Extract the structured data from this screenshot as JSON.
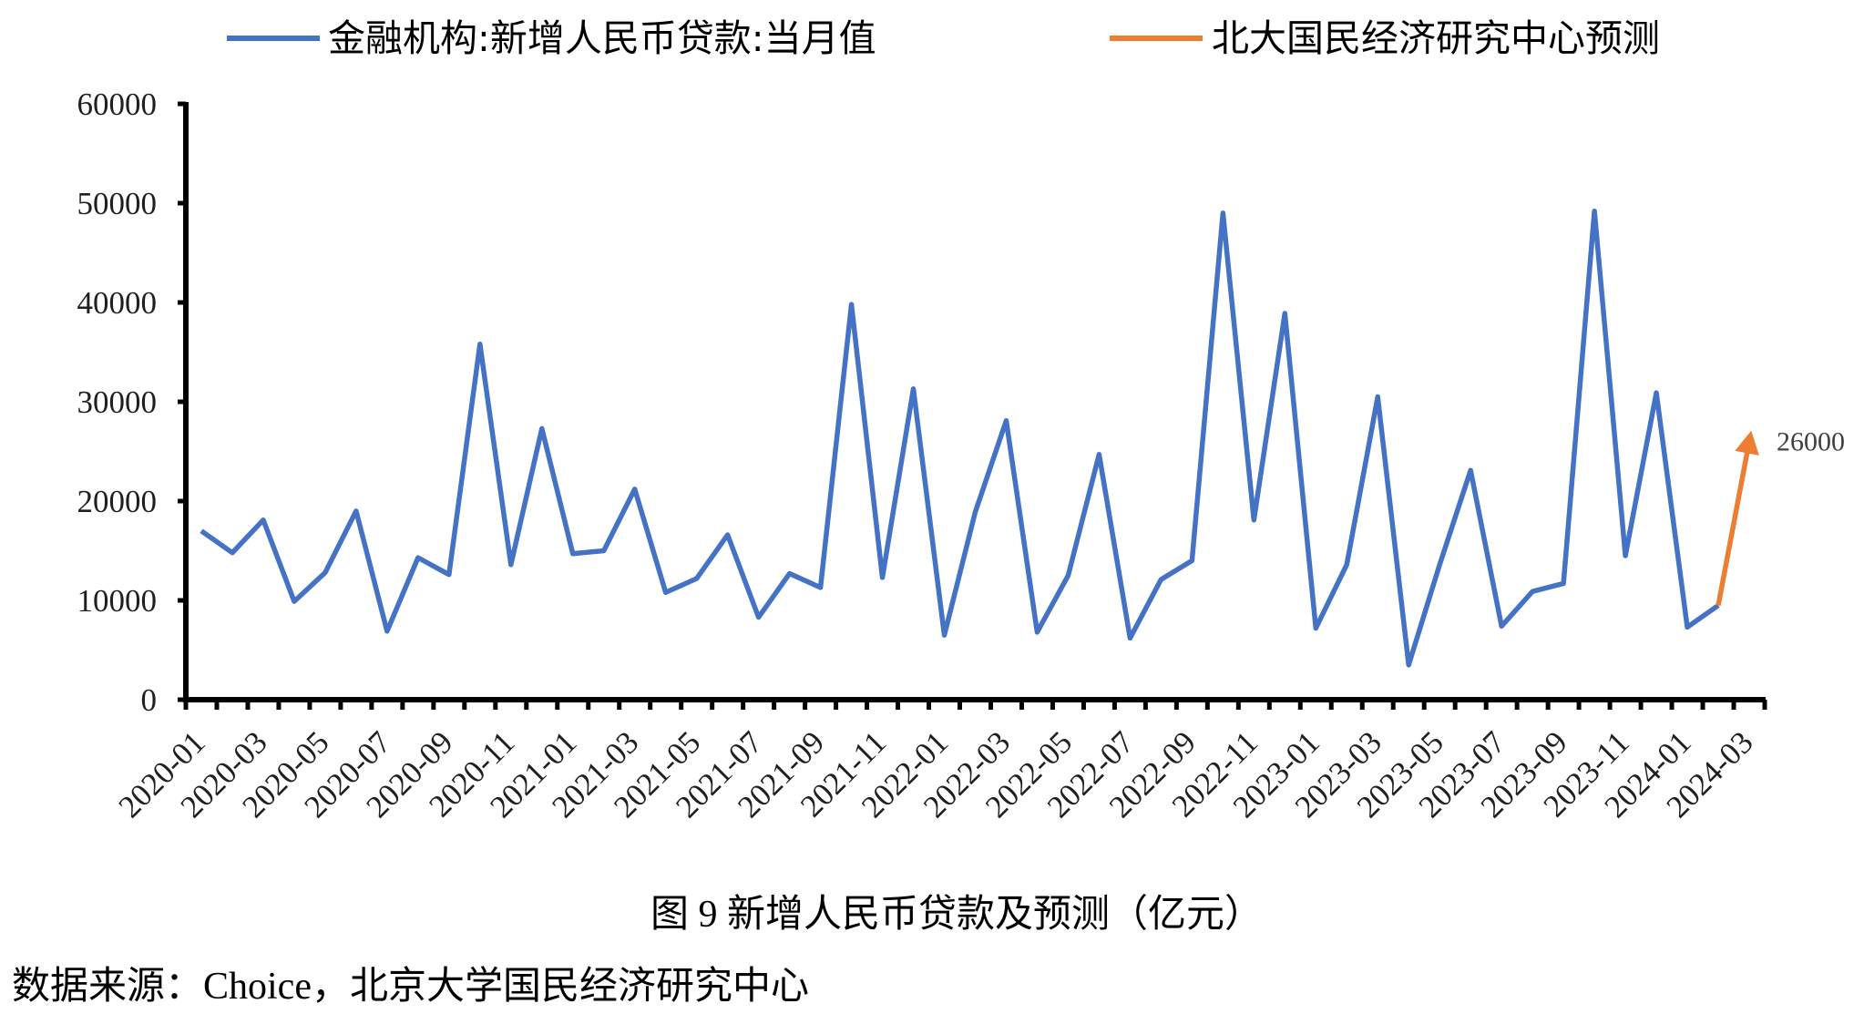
{
  "legend": {
    "position": "top",
    "items": [
      {
        "label": "金融机构:新增人民币贷款:当月值",
        "color": "#4472C4",
        "icon": "line-swatch"
      },
      {
        "label": "北大国民经济研究中心预测",
        "color": "#ED7D31",
        "icon": "line-swatch"
      }
    ]
  },
  "caption": "图 9 新增人民币贷款及预测（亿元）",
  "source": "数据来源：Choice，北京大学国民经济研究中心",
  "chart_data": {
    "type": "line",
    "title": "图 9 新增人民币贷款及预测（亿元）",
    "xlabel": "",
    "ylabel": "",
    "ylim": [
      0,
      60000
    ],
    "yticks": [
      0,
      10000,
      20000,
      30000,
      40000,
      50000,
      60000
    ],
    "grid": false,
    "legend_position": "top",
    "x_label_interval": 2,
    "x_label_rotation": -45,
    "categories": [
      "2020-01",
      "2020-02",
      "2020-03",
      "2020-04",
      "2020-05",
      "2020-06",
      "2020-07",
      "2020-08",
      "2020-09",
      "2020-10",
      "2020-11",
      "2020-12",
      "2021-01",
      "2021-02",
      "2021-03",
      "2021-04",
      "2021-05",
      "2021-06",
      "2021-07",
      "2021-08",
      "2021-09",
      "2021-10",
      "2021-11",
      "2021-12",
      "2022-01",
      "2022-02",
      "2022-03",
      "2022-04",
      "2022-05",
      "2022-06",
      "2022-07",
      "2022-08",
      "2022-09",
      "2022-10",
      "2022-11",
      "2022-12",
      "2023-01",
      "2023-02",
      "2023-03",
      "2023-04",
      "2023-05",
      "2023-06",
      "2023-07",
      "2023-08",
      "2023-09",
      "2023-10",
      "2023-11",
      "2023-12",
      "2024-01",
      "2024-02",
      "2024-03"
    ],
    "visible_x_tick_labels": [
      "2020-01",
      "2020-03",
      "2020-05",
      "2020-07",
      "2020-09",
      "2020-11",
      "2021-01",
      "2021-03",
      "2021-05",
      "2021-07",
      "2021-09",
      "2021-11",
      "2022-01",
      "2022-03",
      "2022-05",
      "2022-07",
      "2022-09",
      "2022-11",
      "2023-01",
      "2023-03",
      "2023-05",
      "2023-07",
      "2023-09",
      "2023-11",
      "2024-01",
      "2024-03"
    ],
    "series": [
      {
        "name": "金融机构:新增人民币贷款:当月值",
        "color": "#4472C4",
        "values": [
          17000,
          14800,
          18100,
          9900,
          12800,
          19000,
          6900,
          14300,
          12600,
          35800,
          13600,
          27300,
          14700,
          15000,
          21200,
          10800,
          12200,
          16600,
          8300,
          12700,
          11300,
          39800,
          12300,
          31300,
          6500,
          18900,
          28100,
          6800,
          12500,
          24700,
          6200,
          12100,
          14000,
          49000,
          18100,
          38900,
          7200,
          13600,
          30500,
          3500,
          13600,
          23100,
          7400,
          10900,
          11700,
          49200,
          14500,
          30900,
          7300,
          9500,
          null
        ]
      },
      {
        "name": "北大国民经济研究中心预测",
        "color": "#ED7D31",
        "end_marker": "arrow",
        "values": [
          null,
          null,
          null,
          null,
          null,
          null,
          null,
          null,
          null,
          null,
          null,
          null,
          null,
          null,
          null,
          null,
          null,
          null,
          null,
          null,
          null,
          null,
          null,
          null,
          null,
          null,
          null,
          null,
          null,
          null,
          null,
          null,
          null,
          null,
          null,
          null,
          null,
          null,
          null,
          null,
          null,
          null,
          null,
          null,
          null,
          null,
          null,
          null,
          null,
          9500,
          26000
        ]
      }
    ],
    "annotations": [
      {
        "text": "26000",
        "category": "2024-03",
        "value": 26000
      }
    ]
  }
}
